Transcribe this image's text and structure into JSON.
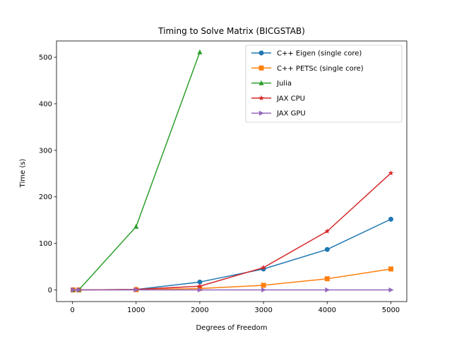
{
  "chart_data": {
    "type": "line",
    "title": "Timing to Solve Matrix (BICGSTAB)",
    "xlabel": "Degrees of Freedom",
    "ylabel": "Time (s)",
    "xlim": [
      -250,
      5250
    ],
    "ylim": [
      -25,
      535
    ],
    "xticks": [
      0,
      1000,
      2000,
      3000,
      4000,
      5000
    ],
    "yticks": [
      0,
      100,
      200,
      300,
      400,
      500
    ],
    "grid": false,
    "legend_position": "top-right",
    "series": [
      {
        "name": "C++ Eigen (single core)",
        "color": "#1f77b4",
        "marker": "circle",
        "x": [
          10,
          100,
          1000,
          2000,
          3000,
          4000,
          5000
        ],
        "y": [
          0,
          0,
          1,
          17,
          45,
          87,
          152
        ]
      },
      {
        "name": "C++ PETSc (single core)",
        "color": "#ff7f0e",
        "marker": "square",
        "x": [
          10,
          100,
          1000,
          2000,
          3000,
          4000,
          5000
        ],
        "y": [
          0,
          0,
          0.5,
          3,
          10,
          24,
          45
        ]
      },
      {
        "name": "Julia",
        "color": "#2ca02c",
        "marker": "triangle-up",
        "x": [
          10,
          100,
          1000,
          2000
        ],
        "y": [
          0,
          0,
          136,
          511
        ]
      },
      {
        "name": "JAX CPU",
        "color": "#d62728",
        "marker": "star",
        "x": [
          10,
          100,
          1000,
          2000,
          3000,
          4000,
          5000
        ],
        "y": [
          0,
          0,
          1,
          8,
          48,
          126,
          251
        ]
      },
      {
        "name": "JAX GPU",
        "color": "#9467bd",
        "marker": "triangle-right",
        "x": [
          10,
          100,
          1000,
          2000,
          3000,
          4000,
          5000
        ],
        "y": [
          0,
          0,
          0,
          0,
          0,
          0,
          0
        ]
      }
    ]
  }
}
